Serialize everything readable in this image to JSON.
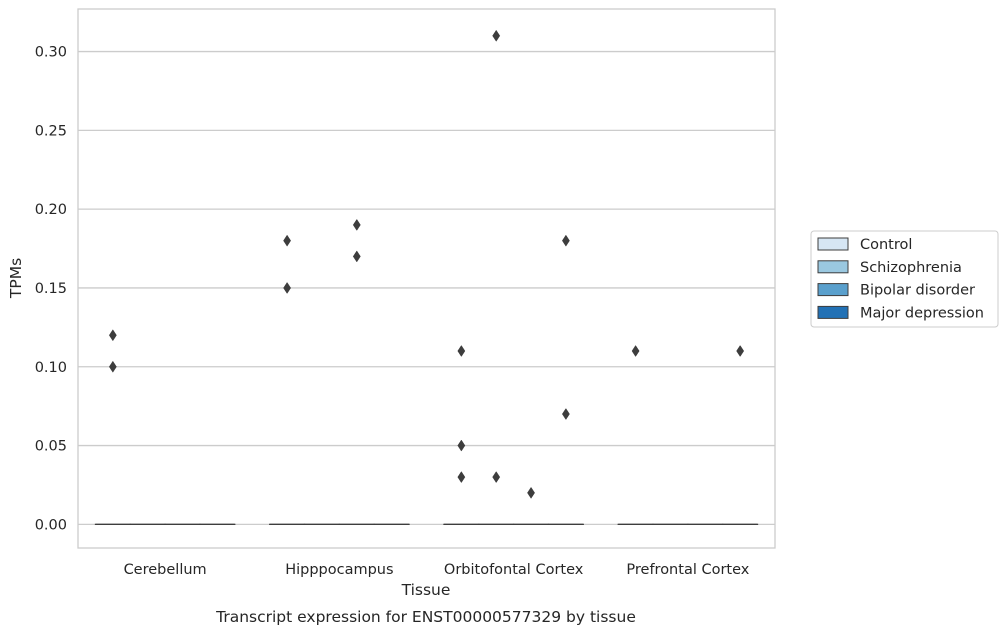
{
  "chart_data": {
    "type": "box",
    "title": "",
    "caption": "Transcript expression for ENST00000577329 by tissue",
    "xlabel": "Tissue",
    "ylabel": "TPMs",
    "ylim": [
      -0.015,
      0.327
    ],
    "yticks": [
      0.0,
      0.05,
      0.1,
      0.15,
      0.2,
      0.25,
      0.3
    ],
    "ytick_labels": [
      "0.00",
      "0.05",
      "0.10",
      "0.15",
      "0.20",
      "0.25",
      "0.30"
    ],
    "grid": "horizontal",
    "legend_position": "right",
    "categories": [
      "Cerebellum",
      "Hipppocampus",
      "Orbitofontal Cortex",
      "Prefrontal Cortex"
    ],
    "series": [
      {
        "name": "Control",
        "color": "#d6e6f4",
        "boxes": [
          {
            "median": 0,
            "q1": 0,
            "q3": 0,
            "whisker_low": 0,
            "whisker_high": 0,
            "outliers": [
              0.12,
              0.1
            ]
          },
          {
            "median": 0,
            "q1": 0,
            "q3": 0,
            "whisker_low": 0,
            "whisker_high": 0,
            "outliers": [
              0.18,
              0.15
            ]
          },
          {
            "median": 0,
            "q1": 0,
            "q3": 0,
            "whisker_low": 0,
            "whisker_high": 0,
            "outliers": [
              0.11,
              0.05,
              0.03
            ]
          },
          {
            "median": 0,
            "q1": 0,
            "q3": 0,
            "whisker_low": 0,
            "whisker_high": 0,
            "outliers": [
              0.11
            ]
          }
        ]
      },
      {
        "name": "Schizophrenia",
        "color": "#9ac8e0",
        "boxes": [
          {
            "median": 0,
            "q1": 0,
            "q3": 0,
            "whisker_low": 0,
            "whisker_high": 0,
            "outliers": []
          },
          {
            "median": 0,
            "q1": 0,
            "q3": 0,
            "whisker_low": 0,
            "whisker_high": 0,
            "outliers": []
          },
          {
            "median": 0,
            "q1": 0,
            "q3": 0,
            "whisker_low": 0,
            "whisker_high": 0,
            "outliers": [
              0.31,
              0.03
            ]
          },
          {
            "median": 0,
            "q1": 0,
            "q3": 0,
            "whisker_low": 0,
            "whisker_high": 0,
            "outliers": []
          }
        ]
      },
      {
        "name": "Bipolar disorder",
        "color": "#5aa0cd",
        "boxes": [
          {
            "median": 0,
            "q1": 0,
            "q3": 0,
            "whisker_low": 0,
            "whisker_high": 0,
            "outliers": []
          },
          {
            "median": 0,
            "q1": 0,
            "q3": 0,
            "whisker_low": 0,
            "whisker_high": 0,
            "outliers": [
              0.19,
              0.17
            ]
          },
          {
            "median": 0,
            "q1": 0,
            "q3": 0,
            "whisker_low": 0,
            "whisker_high": 0,
            "outliers": [
              0.02
            ]
          },
          {
            "median": 0,
            "q1": 0,
            "q3": 0,
            "whisker_low": 0,
            "whisker_high": 0,
            "outliers": []
          }
        ]
      },
      {
        "name": "Major depression",
        "color": "#2271b5",
        "boxes": [
          {
            "median": 0,
            "q1": 0,
            "q3": 0,
            "whisker_low": 0,
            "whisker_high": 0,
            "outliers": []
          },
          {
            "median": 0,
            "q1": 0,
            "q3": 0,
            "whisker_low": 0,
            "whisker_high": 0,
            "outliers": []
          },
          {
            "median": 0,
            "q1": 0,
            "q3": 0,
            "whisker_low": 0,
            "whisker_high": 0,
            "outliers": [
              0.18,
              0.07
            ]
          },
          {
            "median": 0,
            "q1": 0,
            "q3": 0,
            "whisker_low": 0,
            "whisker_high": 0,
            "outliers": [
              0.11
            ]
          }
        ]
      }
    ]
  },
  "colors": {
    "grid": "#cccccc",
    "frame": "#cccccc",
    "box_edge": "#3d3d3d",
    "outlier": "#3d3d3d"
  }
}
